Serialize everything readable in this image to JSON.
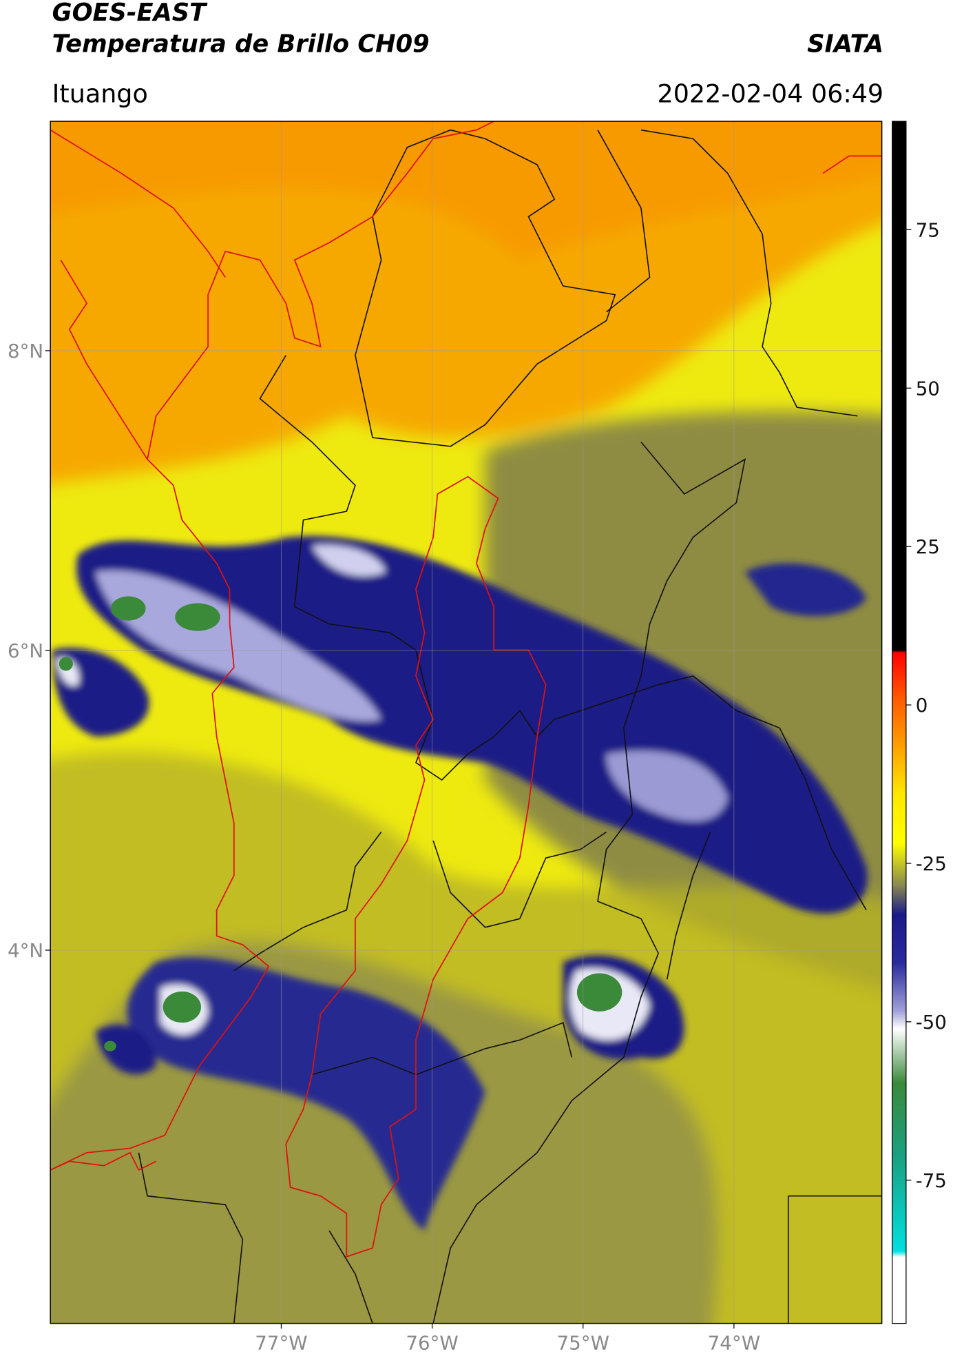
{
  "header": {
    "title": "GOES-EAST",
    "subtitle": "Temperatura de Brillo CH09",
    "source": "SIATA",
    "region": "Ituango",
    "timestamp": "2022-02-04 06:49"
  },
  "map": {
    "xlim": [
      -78.53,
      -73.02
    ],
    "ylim": [
      1.51,
      9.53
    ],
    "xticks": [
      {
        "value": -77,
        "label": "77°W"
      },
      {
        "value": -76,
        "label": "76°W"
      },
      {
        "value": -75,
        "label": "75°W"
      },
      {
        "value": -74,
        "label": "74°W"
      }
    ],
    "yticks": [
      {
        "value": 8,
        "label": "8°N"
      },
      {
        "value": 6,
        "label": "6°N"
      },
      {
        "value": 4,
        "label": "4°N"
      }
    ],
    "grid": true
  },
  "colorbar": {
    "lim": [
      -97.6,
      92.1
    ],
    "ticks": [
      75,
      50,
      25,
      0,
      -25,
      -50,
      -75
    ]
  }
}
